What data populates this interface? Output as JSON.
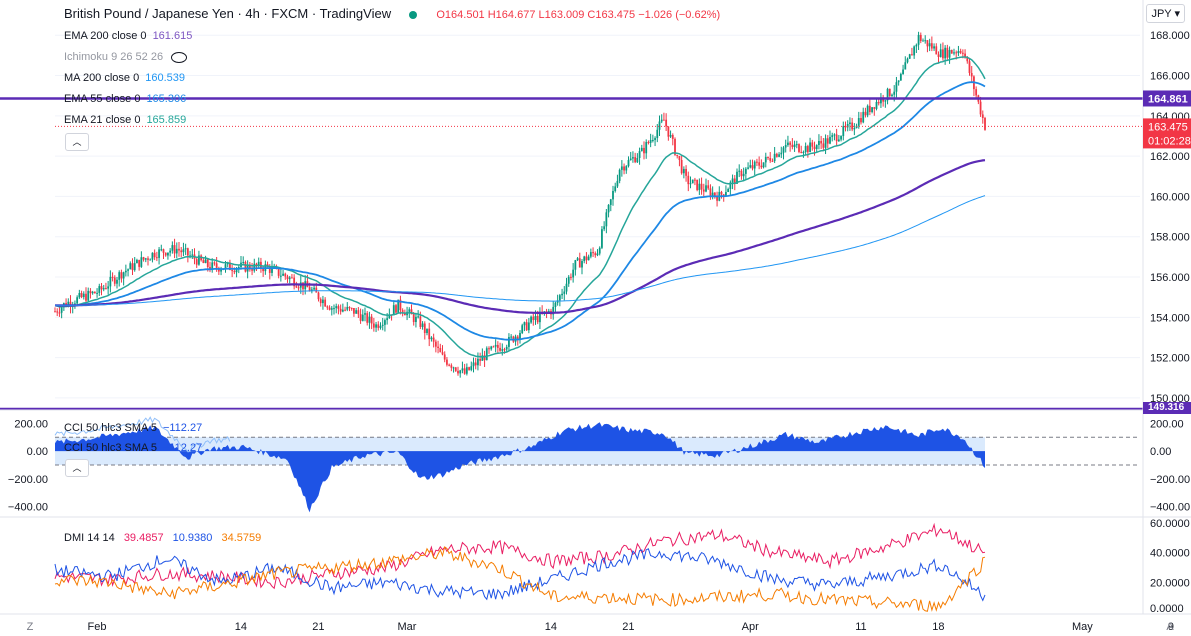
{
  "header": {
    "title": "British Pound / Japanese Yen · 4h · FXCM · TradingView",
    "ohlc": "O164.501 H164.677 L163.009 C163.475 −1.026 (−0.62%)",
    "currency": "JPY"
  },
  "legends": {
    "ema200": {
      "label": "EMA 200 close 0",
      "value": "161.615",
      "color": "#7e57c2"
    },
    "ichimoku": {
      "label": "Ichimoku 9 26 52 26",
      "color": "#787b86"
    },
    "ma200": {
      "label": "MA 200 close 0",
      "value": "160.539",
      "color": "#2196f3"
    },
    "ema55": {
      "label": "EMA 55 close 0",
      "value": "165.306",
      "color": "#1e88e5"
    },
    "ema21": {
      "label": "EMA 21 close 0",
      "value": "165.859",
      "color": "#26a69a"
    },
    "cci_a": {
      "label": "CCI 50 hlc3 SMA 5",
      "value": "−112.27"
    },
    "cci_b": {
      "label": "CCI 50 hlc3 SMA 5",
      "value": "−112.27"
    },
    "dmi": {
      "label": "DMI 14 14",
      "v1": "39.4857",
      "v2": "10.9380",
      "v3": "34.5759",
      "c1": "#e91e63",
      "c2": "#1e53e5",
      "c3": "#f57c00"
    }
  },
  "price_tags": {
    "level": "164.861",
    "last": "163.475",
    "countdown": "01:02:28",
    "lower": "149.316"
  },
  "price_axis": [
    "168.000",
    "166.000",
    "164.000",
    "162.000",
    "160.000",
    "158.000",
    "156.000",
    "154.000",
    "152.000",
    "150.000"
  ],
  "cci_axis": [
    "200.00",
    "0.00",
    "−200.00",
    "−400.00"
  ],
  "dmi_axis": [
    "60.0000",
    "40.0000",
    "20.0000",
    "0.0000"
  ],
  "time_axis": [
    "Feb",
    "14",
    "21",
    "Mar",
    "14",
    "21",
    "Apr",
    "11",
    "18",
    "May",
    "9"
  ],
  "axis_buttons": {
    "left": "Z",
    "right": "A"
  },
  "colors": {
    "up": "#089981",
    "down": "#f23645",
    "level": "#5b2bb5",
    "cci_fill": "#1e53e5"
  },
  "chart_data": {
    "type": "line",
    "title": "British Pound / Japanese Yen",
    "timeframe": "4h",
    "x_range": [
      "2022-02-01",
      "2022-05-09"
    ],
    "ylim": [
      149.5,
      169.5
    ],
    "horizontal_levels": [
      164.861,
      149.316
    ],
    "last_price": 163.475,
    "price_anchors": {
      "days": [
        0,
        1,
        4,
        6,
        9,
        11,
        14,
        17,
        19,
        21,
        23,
        25,
        27,
        29,
        31,
        33,
        35,
        37,
        39,
        41,
        43,
        45,
        47,
        49,
        51,
        53,
        55,
        57,
        60,
        62,
        64,
        66,
        68,
        70,
        72,
        74,
        76,
        78,
        80,
        82,
        84
      ],
      "close": [
        154.3,
        154.7,
        155.3,
        156.2,
        157.2,
        157.4,
        156.5,
        156.5,
        156.5,
        156.0,
        155.4,
        154.5,
        154.3,
        153.6,
        154.6,
        153.7,
        152.0,
        151.2,
        152.2,
        152.8,
        153.8,
        154.4,
        156.6,
        157.3,
        161.4,
        162.2,
        163.8,
        160.8,
        160.0,
        161.2,
        161.7,
        162.5,
        162.4,
        162.8,
        163.5,
        164.6,
        165.4,
        167.9,
        167.1,
        167.3,
        163.5
      ]
    },
    "series": [
      {
        "name": "EMA 21",
        "last": 165.859
      },
      {
        "name": "EMA 55",
        "last": 165.306
      },
      {
        "name": "EMA 200",
        "last": 161.615
      },
      {
        "name": "MA 200",
        "last": 160.539
      }
    ],
    "cci": {
      "ylim": [
        -460,
        260
      ],
      "bands": [
        100,
        -100
      ],
      "last": -112.27,
      "days": [
        0,
        4,
        9,
        12,
        14,
        17,
        21,
        23,
        25,
        28,
        31,
        33,
        35,
        37,
        40,
        43,
        46,
        49,
        52,
        55,
        57,
        60,
        63,
        66,
        69,
        72,
        75,
        78,
        80,
        82,
        84
      ],
      "values": [
        60,
        100,
        170,
        -50,
        20,
        30,
        -60,
        -420,
        -120,
        -30,
        -10,
        -200,
        -170,
        -100,
        -40,
        30,
        150,
        190,
        150,
        130,
        -20,
        -30,
        40,
        120,
        60,
        130,
        180,
        110,
        170,
        100,
        -112
      ]
    },
    "dmi": {
      "ylim": [
        0,
        62
      ],
      "days": [
        0,
        5,
        10,
        15,
        20,
        25,
        30,
        35,
        40,
        45,
        50,
        55,
        60,
        65,
        70,
        75,
        80,
        84
      ],
      "plus_di": [
        28,
        24,
        36,
        20,
        30,
        16,
        20,
        14,
        12,
        22,
        34,
        40,
        34,
        22,
        18,
        24,
        32,
        10.938
      ],
      "minus_di": [
        22,
        20,
        12,
        18,
        26,
        30,
        34,
        40,
        30,
        10,
        10,
        8,
        10,
        12,
        8,
        6,
        4,
        34.5759
      ],
      "adx": [
        24,
        22,
        26,
        24,
        20,
        26,
        30,
        42,
        44,
        34,
        38,
        48,
        52,
        40,
        34,
        44,
        56,
        39.4857
      ]
    }
  }
}
